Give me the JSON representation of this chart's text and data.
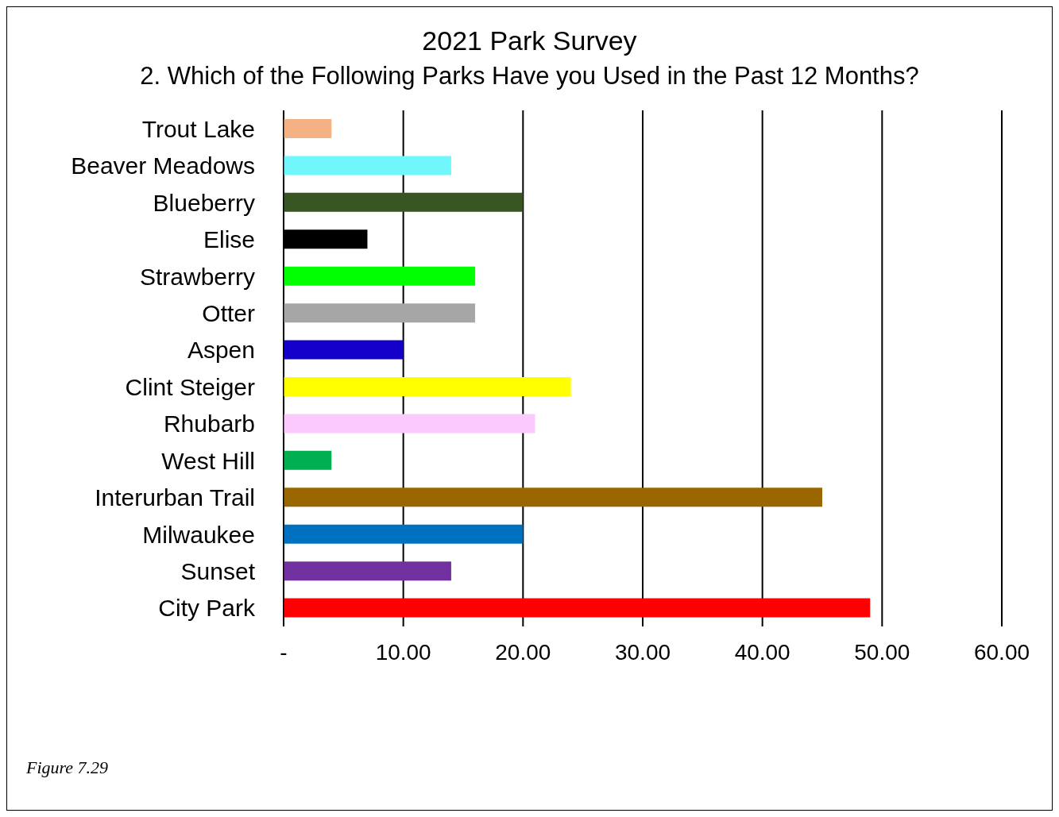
{
  "chart_data": {
    "type": "bar",
    "orientation": "horizontal",
    "title": "2021 Park Survey",
    "subtitle": "2. Which of the Following Parks Have you Used in the Past 12 Months?",
    "categories": [
      "Trout Lake",
      "Beaver Meadows",
      "Blueberry",
      "Elise",
      "Strawberry",
      "Otter",
      "Aspen",
      "Clint Steiger",
      "Rhubarb",
      "West Hill",
      "Interurban Trail",
      "Milwaukee",
      "Sunset",
      "City Park"
    ],
    "values": [
      4,
      14,
      20,
      7,
      16,
      16,
      10,
      24,
      21,
      4,
      45,
      20,
      14,
      49
    ],
    "colors": [
      "#f4b183",
      "#6ff7fb",
      "#375623",
      "#000000",
      "#00ff00",
      "#a6a6a6",
      "#1400c8",
      "#ffff00",
      "#fbc9fb",
      "#00b050",
      "#996600",
      "#0070c0",
      "#7030a0",
      "#ff0000"
    ],
    "xlim": [
      0,
      60
    ],
    "xticks": [
      {
        "value": 0,
        "label": "-"
      },
      {
        "value": 10,
        "label": "10.00"
      },
      {
        "value": 20,
        "label": "20.00"
      },
      {
        "value": 30,
        "label": "30.00"
      },
      {
        "value": 40,
        "label": "40.00"
      },
      {
        "value": 50,
        "label": "50.00"
      },
      {
        "value": 60,
        "label": "60.00"
      }
    ],
    "grid": "x",
    "legend": false,
    "annotations": [
      "Figure 7.29"
    ]
  }
}
